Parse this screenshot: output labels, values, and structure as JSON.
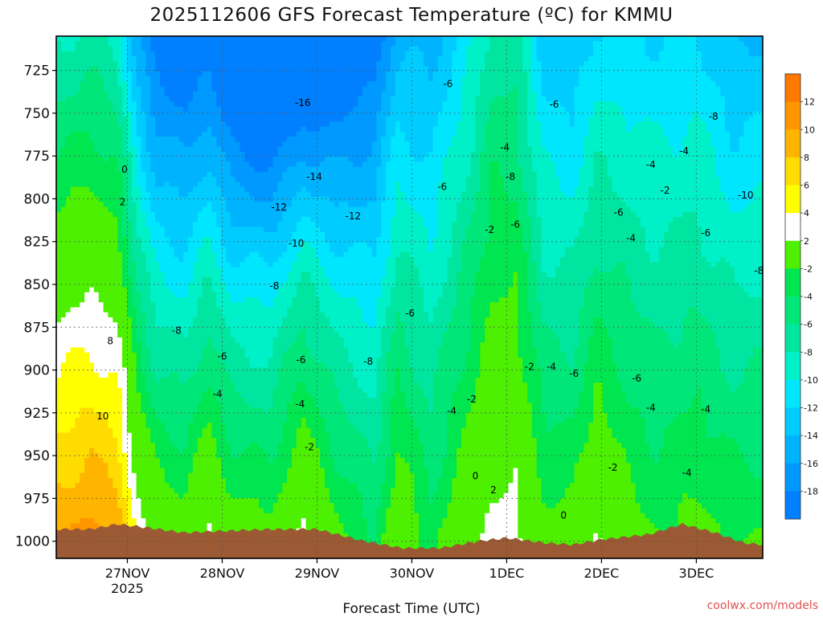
{
  "chart_data": {
    "type": "heatmap",
    "title": "2025112606 GFS Forecast Temperature (ºC) for KMMU",
    "xlabel": "Forecast Time (UTC)",
    "ylabel": "",
    "credit": "coolwx.com/models",
    "x_ticks": [
      {
        "day": 1.0,
        "label": "27NOV",
        "sub": "2025"
      },
      {
        "day": 2.0,
        "label": "28NOV",
        "sub": ""
      },
      {
        "day": 3.0,
        "label": "29NOV",
        "sub": ""
      },
      {
        "day": 4.0,
        "label": "30NOV",
        "sub": ""
      },
      {
        "day": 5.0,
        "label": "1DEC",
        "sub": ""
      },
      {
        "day": 6.0,
        "label": "2DEC",
        "sub": ""
      },
      {
        "day": 7.0,
        "label": "3DEC",
        "sub": ""
      }
    ],
    "xlim": [
      0.25,
      7.7
    ],
    "y_ticks": [
      725,
      750,
      775,
      800,
      825,
      850,
      875,
      900,
      925,
      950,
      975,
      1000
    ],
    "ylim": [
      705,
      1010
    ],
    "colorbar": {
      "levels": [
        -20,
        -18,
        -16,
        -14,
        -12,
        -10,
        -8,
        -6,
        -4,
        -2,
        2,
        4,
        6,
        8,
        10,
        12,
        14
      ],
      "labels": [
        "12",
        "10",
        "8",
        "6",
        "4",
        "2",
        "-2",
        "-4",
        "-6",
        "-8",
        "-10",
        "-12",
        "-14",
        "-16",
        "-18"
      ],
      "colors": [
        "#0080ff",
        "#0099ff",
        "#00b3ff",
        "#00ccff",
        "#00e6ff",
        "#00f0c8",
        "#00e6a0",
        "#00e678",
        "#00e650",
        "#4cf000",
        "#ffffff",
        "#ffff00",
        "#ffdc00",
        "#ffb400",
        "#ff9600",
        "#ff7800"
      ]
    },
    "temperature_profile": [
      {
        "day": 0.3,
        "t_surface": 10,
        "lapse": 0.62
      },
      {
        "day": 0.6,
        "t_surface": 11,
        "lapse": 0.62
      },
      {
        "day": 0.9,
        "t_surface": 10,
        "lapse": 0.64
      },
      {
        "day": 1.1,
        "t_surface": 4,
        "lapse": 0.66
      },
      {
        "day": 1.3,
        "t_surface": 1,
        "lapse": 0.7
      },
      {
        "day": 1.6,
        "t_surface": 0,
        "lapse": 0.7
      },
      {
        "day": 1.85,
        "t_surface": 3,
        "lapse": 0.72
      },
      {
        "day": 2.1,
        "t_surface": 0,
        "lapse": 0.7
      },
      {
        "day": 2.5,
        "t_surface": -1,
        "lapse": 0.66
      },
      {
        "day": 2.85,
        "t_surface": 3,
        "lapse": 0.7
      },
      {
        "day": 3.2,
        "t_surface": -1,
        "lapse": 0.6
      },
      {
        "day": 3.6,
        "t_surface": -4,
        "lapse": 0.48
      },
      {
        "day": 3.85,
        "t_surface": 1,
        "lapse": 0.52
      },
      {
        "day": 4.2,
        "t_surface": -3,
        "lapse": 0.4
      },
      {
        "day": 4.6,
        "t_surface": 1,
        "lapse": 0.4
      },
      {
        "day": 4.85,
        "t_surface": 3,
        "lapse": 0.34
      },
      {
        "day": 5.1,
        "t_surface": 3,
        "lapse": 0.35
      },
      {
        "day": 5.4,
        "t_surface": -1,
        "lapse": 0.42
      },
      {
        "day": 5.7,
        "t_surface": -1,
        "lapse": 0.44
      },
      {
        "day": 5.95,
        "t_surface": 2,
        "lapse": 0.46
      },
      {
        "day": 6.3,
        "t_surface": -1,
        "lapse": 0.36
      },
      {
        "day": 6.6,
        "t_surface": -2,
        "lapse": 0.34
      },
      {
        "day": 7.0,
        "t_surface": -1,
        "lapse": 0.36
      },
      {
        "day": 7.4,
        "t_surface": -2,
        "lapse": 0.42
      },
      {
        "day": 7.7,
        "t_surface": -2,
        "lapse": 0.4
      }
    ],
    "surface_pressure": [
      {
        "day": 0.25,
        "p": 993
      },
      {
        "day": 0.6,
        "p": 993
      },
      {
        "day": 0.9,
        "p": 990
      },
      {
        "day": 1.2,
        "p": 992
      },
      {
        "day": 1.6,
        "p": 995
      },
      {
        "day": 2.0,
        "p": 994
      },
      {
        "day": 2.5,
        "p": 993
      },
      {
        "day": 3.0,
        "p": 993
      },
      {
        "day": 3.5,
        "p": 1000
      },
      {
        "day": 3.9,
        "p": 1004
      },
      {
        "day": 4.3,
        "p": 1004
      },
      {
        "day": 4.7,
        "p": 1000
      },
      {
        "day": 5.0,
        "p": 998
      },
      {
        "day": 5.4,
        "p": 1001
      },
      {
        "day": 5.7,
        "p": 1002
      },
      {
        "day": 6.0,
        "p": 999
      },
      {
        "day": 6.5,
        "p": 996
      },
      {
        "day": 6.85,
        "p": 990
      },
      {
        "day": 7.2,
        "p": 995
      },
      {
        "day": 7.5,
        "p": 1001
      },
      {
        "day": 7.7,
        "p": 1002
      }
    ],
    "contour_labels": [
      {
        "day": 0.97,
        "p": 783,
        "text": "0"
      },
      {
        "day": 0.95,
        "p": 802,
        "text": "2"
      },
      {
        "day": 0.82,
        "p": 883,
        "text": "8"
      },
      {
        "day": 0.74,
        "p": 927,
        "text": "10"
      },
      {
        "day": 2.85,
        "p": 744,
        "text": "-16"
      },
      {
        "day": 2.97,
        "p": 787,
        "text": "-14"
      },
      {
        "day": 2.6,
        "p": 805,
        "text": "-12"
      },
      {
        "day": 3.38,
        "p": 810,
        "text": "-12"
      },
      {
        "day": 2.78,
        "p": 826,
        "text": "-10"
      },
      {
        "day": 2.55,
        "p": 851,
        "text": "-8"
      },
      {
        "day": 1.52,
        "p": 877,
        "text": "-8"
      },
      {
        "day": 2.0,
        "p": 892,
        "text": "-6"
      },
      {
        "day": 2.83,
        "p": 894,
        "text": "-6"
      },
      {
        "day": 1.95,
        "p": 914,
        "text": "-4"
      },
      {
        "day": 2.82,
        "p": 920,
        "text": "-4"
      },
      {
        "day": 2.92,
        "p": 945,
        "text": "-2"
      },
      {
        "day": 3.54,
        "p": 895,
        "text": "-8"
      },
      {
        "day": 3.98,
        "p": 867,
        "text": "-6"
      },
      {
        "day": 4.42,
        "p": 924,
        "text": "-4"
      },
      {
        "day": 4.63,
        "p": 917,
        "text": "-2"
      },
      {
        "day": 4.67,
        "p": 962,
        "text": "0"
      },
      {
        "day": 4.86,
        "p": 970,
        "text": "2"
      },
      {
        "day": 4.32,
        "p": 793,
        "text": "-6"
      },
      {
        "day": 4.38,
        "p": 733,
        "text": "-6"
      },
      {
        "day": 5.5,
        "p": 745,
        "text": "-6"
      },
      {
        "day": 4.98,
        "p": 770,
        "text": "-4"
      },
      {
        "day": 5.04,
        "p": 787,
        "text": "-8"
      },
      {
        "day": 4.82,
        "p": 818,
        "text": "-2"
      },
      {
        "day": 5.09,
        "p": 815,
        "text": "-6"
      },
      {
        "day": 5.24,
        "p": 898,
        "text": "-2"
      },
      {
        "day": 5.47,
        "p": 898,
        "text": "-4"
      },
      {
        "day": 5.71,
        "p": 902,
        "text": "-6"
      },
      {
        "day": 6.18,
        "p": 808,
        "text": "-6"
      },
      {
        "day": 6.31,
        "p": 823,
        "text": "-4"
      },
      {
        "day": 6.52,
        "p": 780,
        "text": "-4"
      },
      {
        "day": 6.67,
        "p": 795,
        "text": "-2"
      },
      {
        "day": 6.87,
        "p": 772,
        "text": "-4"
      },
      {
        "day": 6.37,
        "p": 905,
        "text": "-6"
      },
      {
        "day": 6.52,
        "p": 922,
        "text": "-4"
      },
      {
        "day": 6.12,
        "p": 957,
        "text": "-2"
      },
      {
        "day": 6.9,
        "p": 960,
        "text": "-4"
      },
      {
        "day": 7.1,
        "p": 923,
        "text": "-4"
      },
      {
        "day": 5.6,
        "p": 985,
        "text": "0"
      },
      {
        "day": 7.18,
        "p": 752,
        "text": "-8"
      },
      {
        "day": 7.52,
        "p": 798,
        "text": "-10"
      },
      {
        "day": 7.1,
        "p": 820,
        "text": "-6"
      },
      {
        "day": 7.66,
        "p": 842,
        "text": "-8"
      }
    ]
  }
}
